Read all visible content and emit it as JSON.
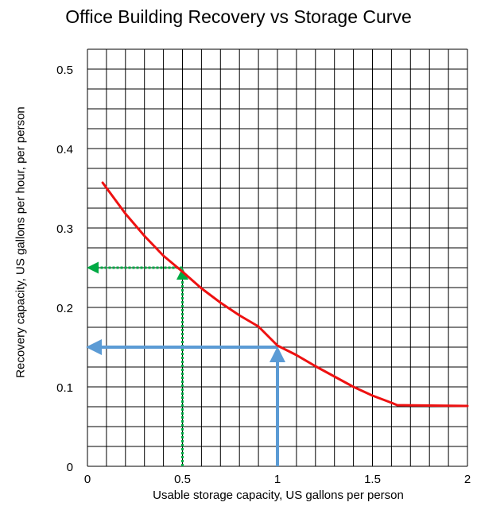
{
  "chart_data": {
    "type": "line",
    "title": "Office Building Recovery vs Storage Curve",
    "xlabel": "Usable storage capacity, US gallons per person",
    "ylabel": "Recovery capacity, US gallons per hour, per person",
    "xlim": [
      0,
      2
    ],
    "ylim": [
      0,
      0.5
    ],
    "x_ticks": [
      0,
      0.5,
      1,
      1.5,
      2
    ],
    "x_tick_labels": [
      "0",
      "0.5",
      "1",
      "1.5",
      "2"
    ],
    "y_ticks": [
      0,
      0.1,
      0.2,
      0.3,
      0.4,
      0.5
    ],
    "y_tick_labels": [
      "0",
      "0.1",
      "0.2",
      "0.3",
      "0.4",
      "0.5"
    ],
    "grid": true,
    "series": [
      {
        "color": "#ee1111",
        "x": [
          0.08,
          0.2,
          0.3,
          0.4,
          0.5,
          0.6,
          0.7,
          0.8,
          0.9,
          1.0,
          1.1,
          1.2,
          1.3,
          1.4,
          1.5,
          1.6,
          1.63,
          2.0
        ],
        "y": [
          0.357,
          0.318,
          0.29,
          0.265,
          0.245,
          0.224,
          0.206,
          0.19,
          0.176,
          0.152,
          0.14,
          0.126,
          0.113,
          0.1,
          0.089,
          0.08,
          0.077,
          0.076
        ]
      }
    ],
    "annotations": [
      {
        "type": "reading-arrows",
        "color": "#00aa44",
        "style": "dotted",
        "x": 0.5,
        "y": 0.25
      },
      {
        "type": "reading-arrows",
        "color": "#5b9bd5",
        "style": "solid",
        "x": 1.0,
        "y": 0.15
      }
    ]
  }
}
